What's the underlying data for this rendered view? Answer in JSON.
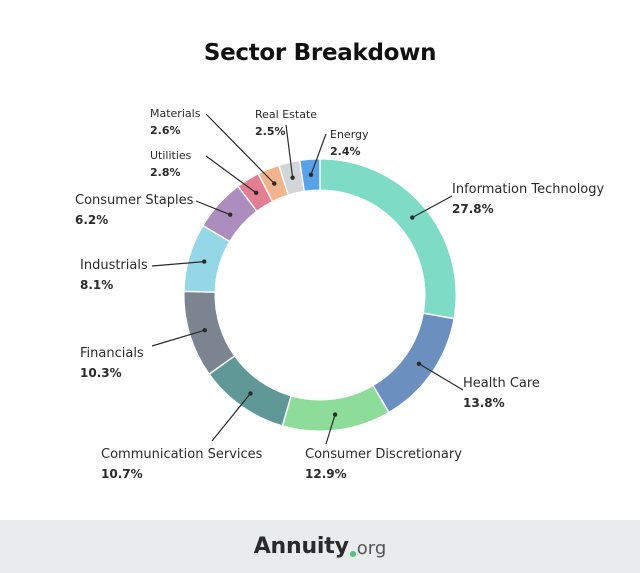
{
  "chart_data": {
    "type": "pie",
    "donut": true,
    "title": "Sector Breakdown",
    "unit": "%",
    "slices": [
      {
        "label": "Information Technology",
        "value": 27.8,
        "display": "27.8%",
        "color": "#7ddbc6"
      },
      {
        "label": "Health Care",
        "value": 13.8,
        "display": "13.8%",
        "color": "#6b8fbf"
      },
      {
        "label": "Consumer Discretionary",
        "value": 12.9,
        "display": "12.9%",
        "color": "#8ddc9a"
      },
      {
        "label": "Communication Services",
        "value": 10.7,
        "display": "10.7%",
        "color": "#5f9896"
      },
      {
        "label": "Financials",
        "value": 10.3,
        "display": "10.3%",
        "color": "#7c8490"
      },
      {
        "label": "Industrials",
        "value": 8.1,
        "display": "8.1%",
        "color": "#94d7e6"
      },
      {
        "label": "Consumer Staples",
        "value": 6.2,
        "display": "6.2%",
        "color": "#ad8dbd"
      },
      {
        "label": "Utilities",
        "value": 2.8,
        "display": "2.8%",
        "color": "#e27f92"
      },
      {
        "label": "Materials",
        "value": 2.6,
        "display": "2.6%",
        "color": "#f1b48c"
      },
      {
        "label": "Real Estate",
        "value": 2.5,
        "display": "2.5%",
        "color": "#d3d6d9"
      },
      {
        "label": "Energy",
        "value": 2.4,
        "display": "2.4%",
        "color": "#5aa2e6"
      }
    ]
  },
  "footer": {
    "brand_main": "Annuity",
    "brand_suffix": "org",
    "brand_dot_color": "#52c27c",
    "background": "#e8eced"
  }
}
